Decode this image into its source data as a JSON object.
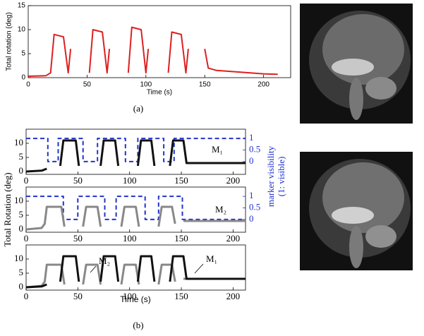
{
  "chart_data": [
    {
      "type": "line",
      "caption": "(a)",
      "xlabel": "Time (s)",
      "ylabel": "Total rotation (deg)",
      "xlim": [
        0,
        223
      ],
      "xticks": [
        0,
        50,
        100,
        150,
        200
      ],
      "ylim": [
        0,
        15
      ],
      "yticks": [
        0,
        5,
        10,
        15
      ],
      "series": [
        {
          "color": "#dd2020",
          "style": "solid",
          "x": [
            0,
            15,
            19,
            22,
            30,
            34,
            36,
            null,
            52,
            55,
            63,
            67,
            69,
            null,
            85,
            88,
            96,
            100,
            102,
            null,
            119,
            122,
            130,
            134,
            136,
            null,
            150,
            153,
            160,
            200,
            212
          ],
          "values": [
            0.3,
            0.4,
            1,
            9,
            8.5,
            1,
            6,
            null,
            1,
            10,
            9.5,
            1,
            6,
            null,
            1,
            10.5,
            10,
            1,
            6,
            null,
            1,
            9.5,
            9,
            1,
            6,
            null,
            6,
            2,
            1.5,
            0.8,
            0.7
          ]
        }
      ]
    },
    {
      "type": "line",
      "y2label": [
        "marker visibility",
        "(1: visible)"
      ],
      "xlim": [
        0,
        212
      ],
      "xticks": [
        0,
        50,
        100,
        150,
        200
      ],
      "ylim": [
        -1,
        15
      ],
      "yticks": [
        0,
        5,
        10
      ],
      "y2lim": [
        -0.55,
        1.4
      ],
      "y2ticks": [
        0,
        0.5,
        1
      ],
      "series": [
        {
          "color": "#2233cc",
          "style": "dashed",
          "axis": "y2",
          "x": [
            0,
            21,
            21,
            31,
            31,
            55,
            55,
            69,
            69,
            96,
            96,
            108,
            108,
            133,
            133,
            143,
            143,
            212
          ],
          "values": [
            1,
            1,
            0,
            0,
            1,
            1,
            0,
            0,
            1,
            1,
            0,
            0,
            1,
            1,
            0,
            0,
            1,
            1
          ]
        },
        {
          "name": "M₁",
          "color": "#111111",
          "style": "solid",
          "x": [
            0,
            15,
            20,
            null,
            33,
            36,
            48,
            51,
            null,
            72,
            75,
            86,
            89,
            null,
            108,
            111,
            121,
            124,
            null,
            139,
            142,
            152,
            155,
            160,
            212
          ],
          "values": [
            0,
            0.3,
            1,
            null,
            2,
            11,
            11,
            2,
            null,
            2,
            11,
            11,
            2,
            null,
            2,
            11,
            11,
            2,
            null,
            2,
            11,
            11,
            3,
            3,
            3
          ]
        }
      ]
    },
    {
      "type": "line",
      "ylabel": "Total Rotation (deg)",
      "xlim": [
        0,
        212
      ],
      "xticks": [
        0,
        50,
        100,
        150,
        200
      ],
      "ylim": [
        -1,
        15
      ],
      "yticks": [
        0,
        5,
        10
      ],
      "y2lim": [
        -0.55,
        1.4
      ],
      "y2ticks": [
        0,
        0.5,
        1
      ],
      "series": [
        {
          "color": "#2233cc",
          "style": "dashed",
          "axis": "y2",
          "x": [
            0,
            36,
            36,
            50,
            50,
            76,
            76,
            87,
            87,
            115,
            115,
            128,
            128,
            151,
            151,
            212
          ],
          "values": [
            1,
            1,
            0,
            0,
            1,
            1,
            0,
            0,
            1,
            1,
            0,
            0,
            1,
            1,
            0,
            0
          ]
        },
        {
          "name": "M₂",
          "color": "#888888",
          "style": "solid",
          "x": [
            0,
            15,
            18,
            20,
            34,
            37,
            null,
            55,
            58,
            69,
            72,
            null,
            92,
            95,
            106,
            109,
            null,
            128,
            131,
            141,
            144,
            null,
            152,
            212
          ],
          "values": [
            0,
            0.5,
            2,
            8,
            8,
            1,
            null,
            1,
            8,
            8,
            1,
            null,
            1,
            8,
            8,
            1,
            null,
            1,
            8,
            8,
            2,
            null,
            3,
            3
          ]
        }
      ]
    },
    {
      "type": "line",
      "caption": "(b)",
      "xlabel": "Time (s)",
      "xlim": [
        0,
        212
      ],
      "xticks": [
        0,
        50,
        100,
        150,
        200
      ],
      "ylim": [
        -1,
        15
      ],
      "yticks": [
        0,
        5,
        10
      ],
      "series": [
        {
          "name": "M₂",
          "color": "#888888",
          "style": "solid",
          "x": [
            0,
            15,
            18,
            20,
            34,
            37,
            null,
            55,
            58,
            69,
            72,
            null,
            92,
            95,
            106,
            109,
            null,
            128,
            131,
            141,
            144,
            null,
            152,
            212
          ],
          "values": [
            0,
            0.5,
            2,
            8,
            8,
            1,
            null,
            1,
            8,
            8,
            1,
            null,
            1,
            8,
            8,
            1,
            null,
            1,
            8,
            8,
            2,
            null,
            3,
            3
          ]
        },
        {
          "name": "M₁",
          "color": "#111111",
          "style": "solid",
          "x": [
            0,
            15,
            20,
            null,
            33,
            36,
            48,
            51,
            null,
            72,
            75,
            86,
            89,
            null,
            108,
            111,
            121,
            124,
            null,
            139,
            142,
            152,
            155,
            160,
            212
          ],
          "values": [
            0,
            0.3,
            1,
            null,
            2,
            11,
            11,
            2,
            null,
            2,
            11,
            11,
            2,
            null,
            2,
            11,
            11,
            2,
            null,
            2,
            11,
            11,
            3,
            3,
            3
          ]
        }
      ]
    }
  ]
}
